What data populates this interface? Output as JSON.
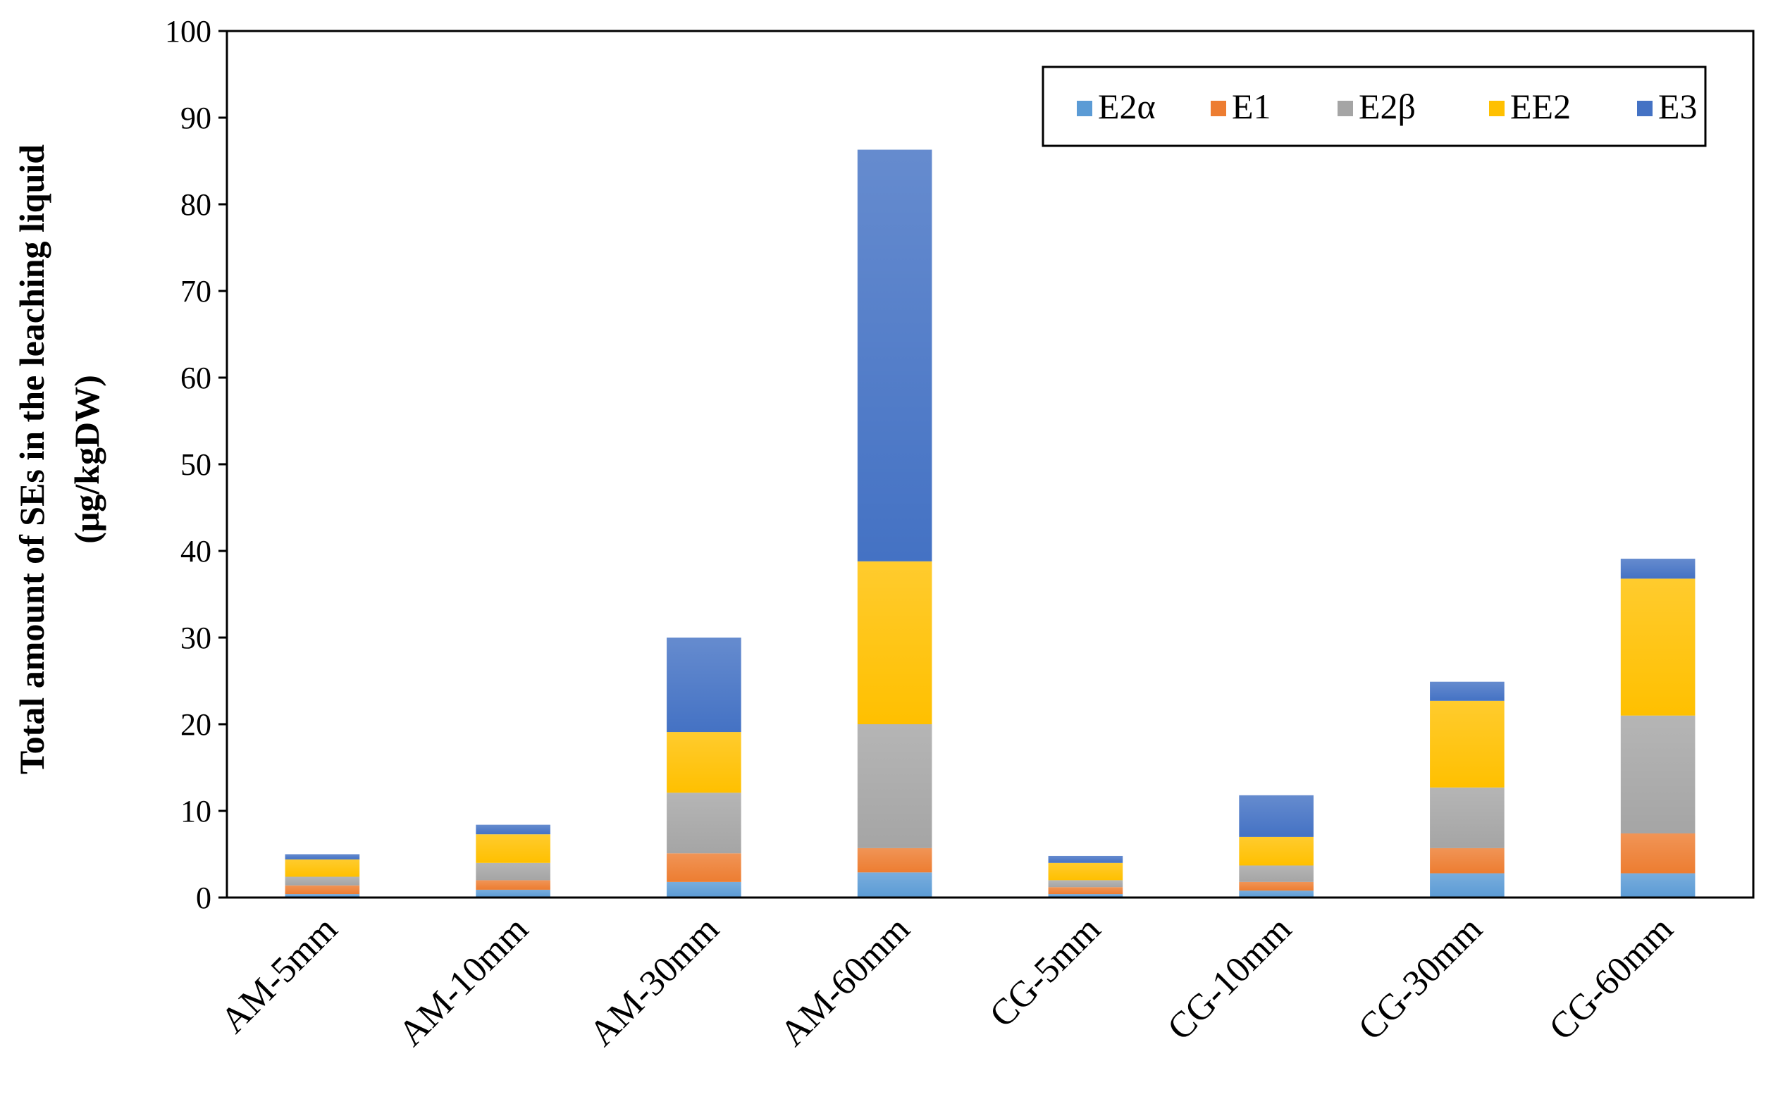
{
  "chart_data": {
    "type": "bar",
    "stacked": true,
    "ylabel_line1": "Total amount of SEs in the leaching liquid",
    "ylabel_line2": "(μg/kgDW)",
    "xlabel": "",
    "ylim": [
      0,
      100
    ],
    "yticks": [
      0,
      10,
      20,
      30,
      40,
      50,
      60,
      70,
      80,
      90,
      100
    ],
    "grid": false,
    "legend_position": "top-right",
    "categories": [
      "AM-5mm",
      "AM-10mm",
      "AM-30mm",
      "AM-60mm",
      "CG-5mm",
      "CG-10mm",
      "CG-30mm",
      "CG-60mm"
    ],
    "series": [
      {
        "name": "E2α",
        "color": "#5b9bd5",
        "values": [
          0.4,
          0.9,
          1.8,
          2.9,
          0.4,
          0.8,
          2.8,
          2.8
        ]
      },
      {
        "name": "E1",
        "color": "#ed7d31",
        "values": [
          1.0,
          1.1,
          3.3,
          2.8,
          0.8,
          1.0,
          2.9,
          4.6
        ]
      },
      {
        "name": "E2β",
        "color": "#a5a5a5",
        "values": [
          1.0,
          2.0,
          7.0,
          14.3,
          0.8,
          1.9,
          7.0,
          13.6
        ]
      },
      {
        "name": "EE2",
        "color": "#ffc000",
        "values": [
          2.0,
          3.3,
          7.0,
          18.8,
          2.0,
          3.3,
          10.0,
          15.8
        ]
      },
      {
        "name": "E3",
        "color": "#4472c4",
        "values": [
          0.6,
          1.1,
          10.9,
          47.5,
          0.8,
          4.8,
          2.2,
          2.3
        ]
      }
    ]
  }
}
